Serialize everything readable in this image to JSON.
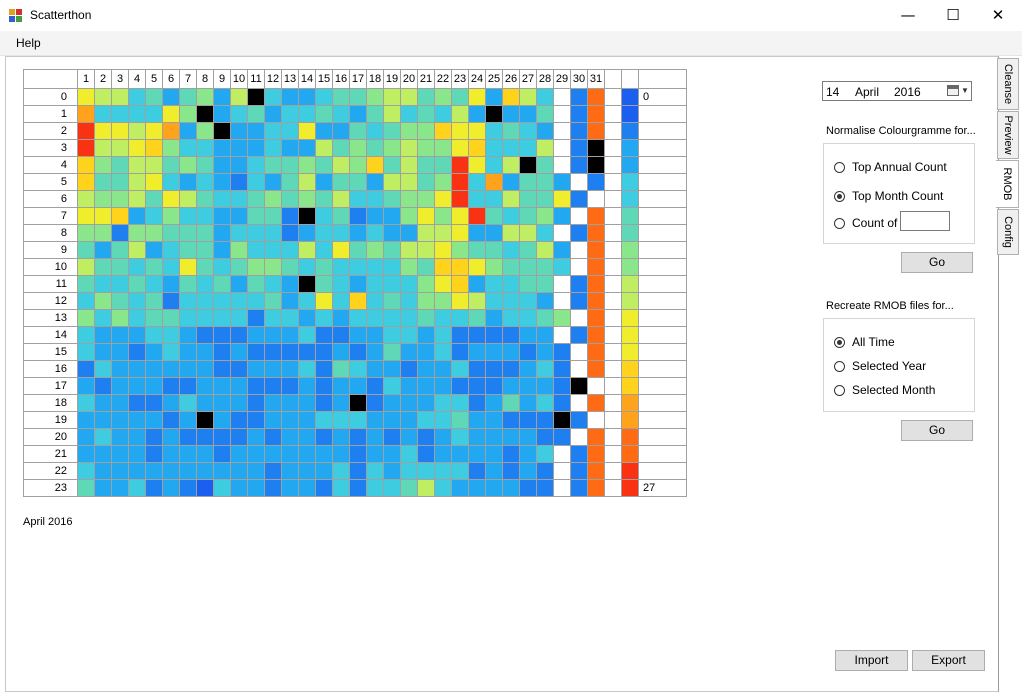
{
  "window": {
    "title": "Scatterthon",
    "minimize_glyph": "—",
    "maximize_glyph": "☐",
    "close_glyph": "✕"
  },
  "menu": {
    "help": "Help"
  },
  "tabs": [
    {
      "label": "Cleanse"
    },
    {
      "label": "Preview"
    },
    {
      "label": "RMOB"
    },
    {
      "label": "Config"
    }
  ],
  "date_picker": {
    "day": "14",
    "month": "April",
    "year": "2016"
  },
  "normalise": {
    "title": "Normalise Colourgramme for...",
    "options": [
      "Top Annual Count",
      "Top Month Count",
      "Count of"
    ],
    "selected": 1,
    "count_value": "",
    "go_label": "Go"
  },
  "recreate": {
    "title": "Recreate RMOB files for...",
    "options": [
      "All Time",
      "Selected Year",
      "Selected Month"
    ],
    "selected": 0,
    "go_label": "Go"
  },
  "buttons": {
    "import": "Import",
    "export": "Export"
  },
  "colourgramme": {
    "month_label": "April 2016",
    "days": [
      "1",
      "2",
      "3",
      "4",
      "5",
      "6",
      "7",
      "8",
      "9",
      "10",
      "11",
      "12",
      "13",
      "14",
      "15",
      "16",
      "17",
      "18",
      "19",
      "20",
      "21",
      "22",
      "23",
      "24",
      "25",
      "26",
      "27",
      "28",
      "29",
      "30",
      "31"
    ],
    "hours": [
      "0",
      "1",
      "2",
      "3",
      "4",
      "5",
      "6",
      "7",
      "8",
      "9",
      "10",
      "11",
      "12",
      "13",
      "14",
      "15",
      "16",
      "17",
      "18",
      "19",
      "20",
      "21",
      "22",
      "23"
    ],
    "scale_min": "0",
    "scale_max": "27",
    "palette": [
      "#1a5ff0",
      "#1e80f0",
      "#22a8f0",
      "#3ecde0",
      "#5fd8b8",
      "#8ae68a",
      "#c0ee62",
      "#f0ee2c",
      "#ffd21c",
      "#ffa21c",
      "#ff6a14",
      "#f83212",
      "#000000"
    ],
    "cells": [
      "7663424526C32234456645472863 1A",
      "9333375C2342334324634362C224 1A",
      "B7767925C2233722434558773432 1A",
      "B667853322232264545655783336 1C",
      "8546645422344546584644B736C4 1C",
      "8446732321324624426645B392442 1A",
      "6556476433454546334557B3364471 A",
      "7782353322441C341225757B43452 A",
      "5515544423331233232266722663 1A",
      "42462344253336374546675443462 A",
      "64434374345543433335488754443 A",
      "4334324342432C43233357823344 1A",
      "3543413333342373834355763332 1A",
      "53534433331332323333433423345 A",
      "3222332111222311223323111122 1A",
      "32212322121111121242231222121 A",
      "13222222112223143221223111231 A",
      "21222112221112122132221112221C A",
      "3221123222122212C122233124231 A",
      "2222212C21122233322233422111C1 A",
      "23221211112122121212123222211 A",
      "2222122212222222122312222123 1A",
      "3222222222212223132333312121 1A",
      "4223121032212213133463222211 1A"
    ]
  }
}
